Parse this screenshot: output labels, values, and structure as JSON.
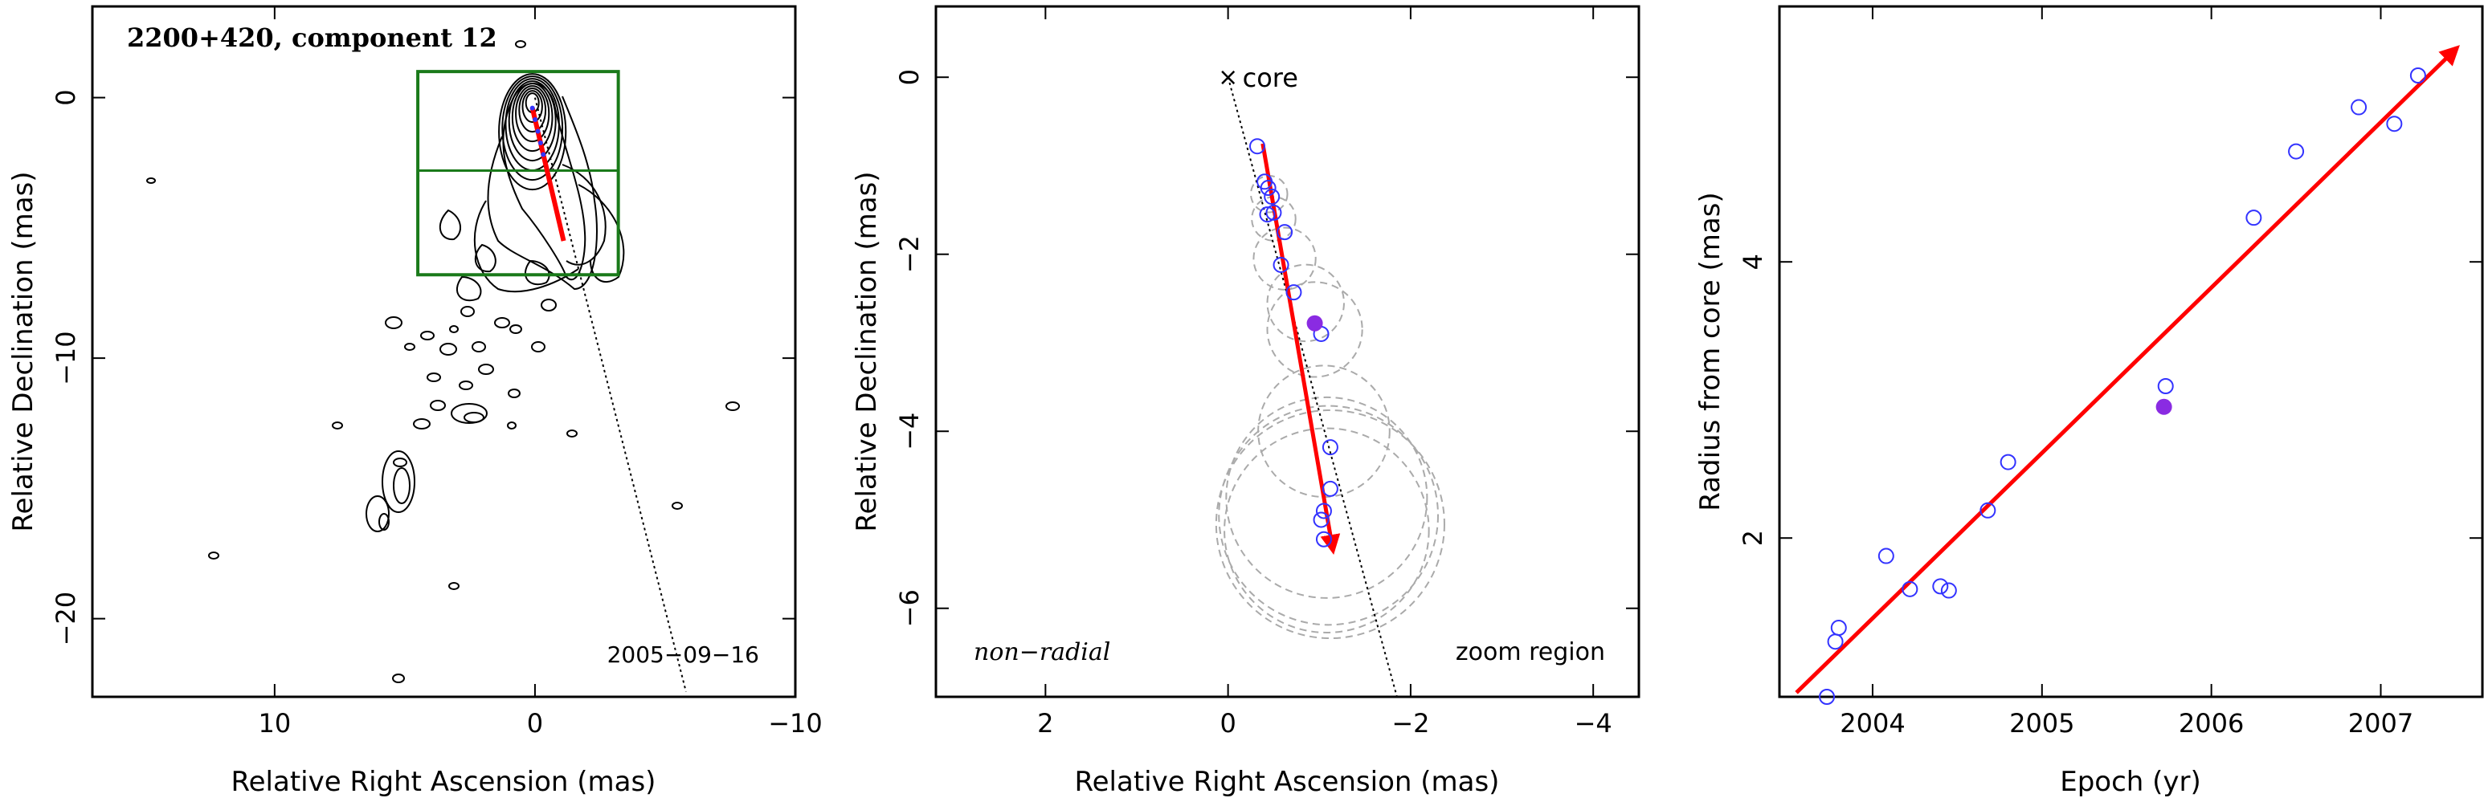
{
  "colors": {
    "arrow": "#ff0000",
    "box": "#1a7a1a",
    "open_marker": "#3333ff",
    "filled_marker": "#8a2be2",
    "ring": "#aaaaaa"
  },
  "chart_data": [
    {
      "type": "contour",
      "title": "2200+420, component 12",
      "xlabel": "Relative Right Ascension (mas)",
      "ylabel": "Relative Declination (mas)",
      "xlim": [
        17,
        -10
      ],
      "ylim": [
        -23,
        3.5
      ],
      "xticks": [
        "10",
        "0",
        "−10"
      ],
      "yticks": [
        "0",
        "−10",
        "−20"
      ],
      "annotation": "2005−09−16",
      "zoom_box": {
        "ra": [
          4.5,
          -3.2
        ],
        "dec": [
          1.0,
          -6.8
        ],
        "divider_dec": -2.8
      },
      "arrow": {
        "from": [
          0.1,
          -0.4
        ],
        "to": [
          -1.1,
          -5.5
        ]
      },
      "guide_line": {
        "from": [
          0.0,
          0.0
        ],
        "to": [
          -5.8,
          -22.8
        ]
      }
    },
    {
      "type": "scatter",
      "label_left": "non−radial",
      "label_right": "zoom region",
      "core_label": "core",
      "xlabel": "Relative Right Ascension (mas)",
      "ylabel": "Relative Declination (mas)",
      "xlim": [
        3.2,
        -4.5
      ],
      "ylim": [
        -7.0,
        0.8
      ],
      "xticks": [
        "2",
        "0",
        "−2",
        "−4"
      ],
      "yticks": [
        "0",
        "−2",
        "−4",
        "−6"
      ],
      "points": [
        [
          -0.32,
          -0.78
        ],
        [
          -0.4,
          -1.18
        ],
        [
          -0.44,
          -1.25
        ],
        [
          -0.48,
          -1.35
        ],
        [
          -0.43,
          -1.55
        ],
        [
          -0.5,
          -1.53
        ],
        [
          -0.62,
          -1.75
        ],
        [
          -0.58,
          -2.12
        ],
        [
          -0.72,
          -2.43
        ],
        [
          -1.02,
          -2.9
        ],
        [
          -1.12,
          -4.18
        ],
        [
          -1.12,
          -4.65
        ],
        [
          -1.05,
          -4.9
        ],
        [
          -1.02,
          -5.0
        ],
        [
          -1.05,
          -5.22
        ]
      ],
      "filled_point": [
        -0.95,
        -2.78
      ],
      "rings": [
        {
          "x": -0.45,
          "y": -1.32,
          "r": 0.2
        },
        {
          "x": -0.5,
          "y": -1.6,
          "r": 0.24
        },
        {
          "x": -0.62,
          "y": -2.05,
          "r": 0.34
        },
        {
          "x": -0.85,
          "y": -2.55,
          "r": 0.42
        },
        {
          "x": -0.95,
          "y": -2.85,
          "r": 0.52
        },
        {
          "x": -1.05,
          "y": -4.0,
          "r": 0.72
        },
        {
          "x": -1.08,
          "y": -4.75,
          "r": 1.1
        },
        {
          "x": -1.1,
          "y": -4.95,
          "r": 1.2
        },
        {
          "x": -1.12,
          "y": -5.05,
          "r": 1.25
        },
        {
          "x": -1.08,
          "y": -5.12,
          "r": 1.12
        }
      ],
      "arrow": {
        "from": [
          -0.38,
          -0.75
        ],
        "to": [
          -1.15,
          -5.35
        ]
      },
      "guide_line": {
        "from": [
          0.0,
          0.0
        ],
        "to": [
          -1.85,
          -7.0
        ]
      }
    },
    {
      "type": "scatter",
      "xlabel": "Epoch (yr)",
      "ylabel": "Radius from core (mas)",
      "xlim": [
        2003.45,
        2007.6
      ],
      "ylim": [
        0.85,
        5.85
      ],
      "xticks": [
        "2004",
        "2005",
        "2006",
        "2007"
      ],
      "yticks": [
        "2",
        "4"
      ],
      "points": [
        [
          2003.73,
          0.85
        ],
        [
          2003.78,
          1.25
        ],
        [
          2003.8,
          1.35
        ],
        [
          2004.08,
          1.87
        ],
        [
          2004.22,
          1.63
        ],
        [
          2004.4,
          1.65
        ],
        [
          2004.45,
          1.62
        ],
        [
          2004.68,
          2.2
        ],
        [
          2004.8,
          2.55
        ],
        [
          2005.73,
          3.1
        ],
        [
          2006.25,
          4.32
        ],
        [
          2006.5,
          4.8
        ],
        [
          2006.87,
          5.12
        ],
        [
          2007.08,
          5.0
        ],
        [
          2007.22,
          5.35
        ]
      ],
      "filled_point": [
        2005.72,
        2.95
      ],
      "fit": {
        "from": [
          2003.55,
          0.88
        ],
        "to": [
          2007.45,
          5.55
        ]
      }
    }
  ]
}
